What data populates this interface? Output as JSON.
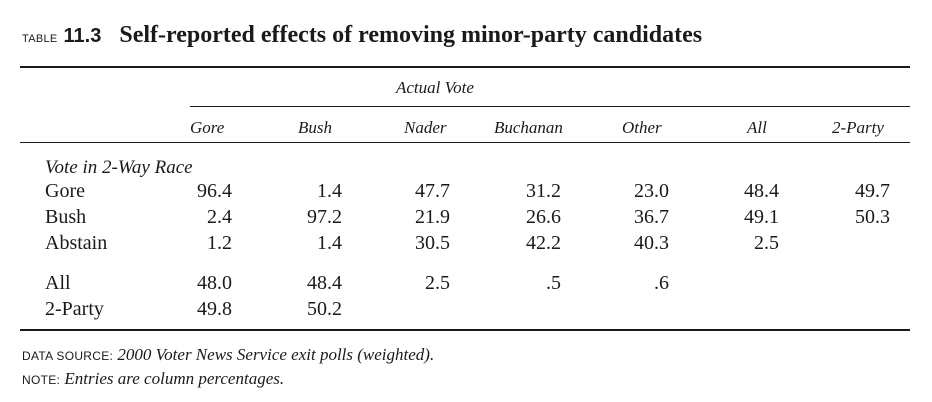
{
  "caption": {
    "tag": "TABLE",
    "number": "11.3",
    "title": "Self-reported effects of removing minor-party candidates"
  },
  "table": {
    "spanner": "Actual Vote",
    "columns": [
      "Gore",
      "Bush",
      "Nader",
      "Buchanan",
      "Other",
      "All",
      "2-Party"
    ],
    "stub_heading": "Vote in 2-Way Race",
    "rows": [
      {
        "label": "Gore",
        "values": [
          "96.4",
          "1.4",
          "47.7",
          "31.2",
          "23.0",
          "48.4",
          "49.7"
        ]
      },
      {
        "label": "Bush",
        "values": [
          "2.4",
          "97.2",
          "21.9",
          "26.6",
          "36.7",
          "49.1",
          "50.3"
        ]
      },
      {
        "label": "Abstain",
        "values": [
          "1.2",
          "1.4",
          "30.5",
          "42.2",
          "40.3",
          "2.5",
          ""
        ]
      },
      {
        "label": "All",
        "values": [
          "48.0",
          "48.4",
          "2.5",
          ".5",
          ".6",
          "",
          ""
        ]
      },
      {
        "label": "2-Party",
        "values": [
          "49.8",
          "50.2",
          "",
          "",
          "",
          "",
          ""
        ]
      }
    ]
  },
  "footnotes": {
    "source_label": "DATA SOURCE:",
    "source_text": "2000 Voter News Service exit polls (weighted).",
    "note_label": "NOTE:",
    "note_text": "Entries are column percentages."
  }
}
